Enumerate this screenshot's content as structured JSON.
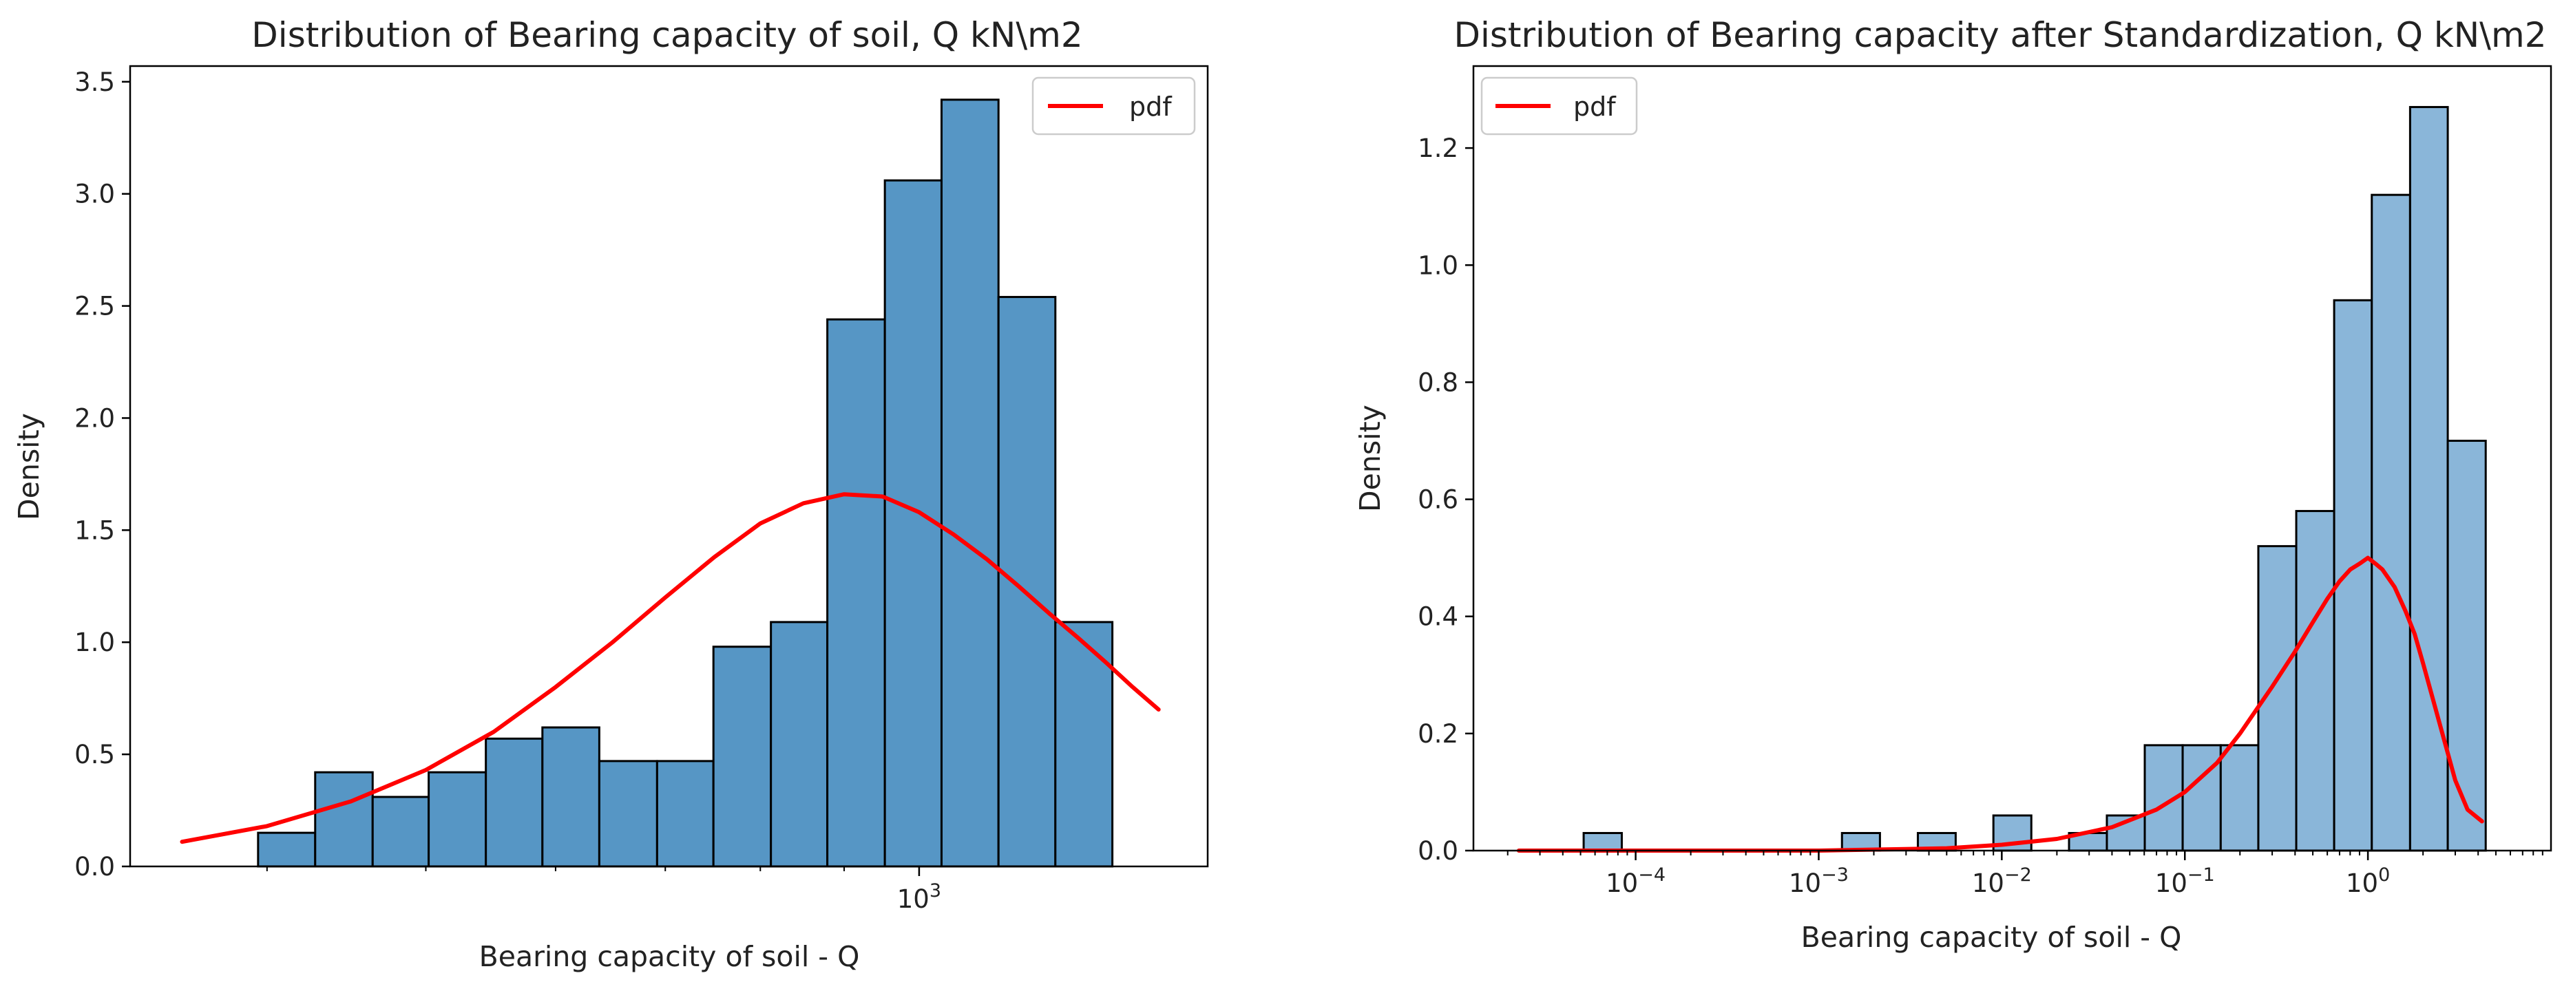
{
  "chart_data": [
    {
      "type": "bar",
      "title": "Distribution of Bearing capacity of soil, Q kN\\m2",
      "xlabel": "Bearing capacity of soil - Q",
      "ylabel": "Density",
      "xscale": "log",
      "xlim": [
        330,
        1500
      ],
      "ylim": [
        0,
        3.57
      ],
      "yticks": [
        0.0,
        0.5,
        1.0,
        1.5,
        2.0,
        2.5,
        3.0,
        3.5
      ],
      "ytick_labels": [
        "0.0",
        "0.5",
        "1.0",
        "1.5",
        "2.0",
        "2.5",
        "3.0",
        "3.5"
      ],
      "xticks": [
        1000
      ],
      "xtick_labels": [
        {
          "base": "10",
          "exp": "3"
        }
      ],
      "bar_color": "#5696c5",
      "bins": [
        {
          "x0": 395,
          "x1": 428,
          "density": 0.15
        },
        {
          "x0": 428,
          "x1": 464,
          "density": 0.42
        },
        {
          "x0": 464,
          "x1": 502,
          "density": 0.31
        },
        {
          "x0": 502,
          "x1": 544,
          "density": 0.42
        },
        {
          "x0": 544,
          "x1": 589,
          "density": 0.57
        },
        {
          "x0": 589,
          "x1": 638,
          "density": 0.62
        },
        {
          "x0": 638,
          "x1": 692,
          "density": 0.47
        },
        {
          "x0": 692,
          "x1": 749,
          "density": 0.47
        },
        {
          "x0": 749,
          "x1": 812,
          "density": 0.98
        },
        {
          "x0": 812,
          "x1": 879,
          "density": 1.09
        },
        {
          "x0": 879,
          "x1": 953,
          "density": 2.44
        },
        {
          "x0": 953,
          "x1": 1032,
          "density": 3.06
        },
        {
          "x0": 1032,
          "x1": 1118,
          "density": 3.42
        },
        {
          "x0": 1118,
          "x1": 1211,
          "density": 2.54
        },
        {
          "x0": 1211,
          "x1": 1312,
          "density": 1.09
        }
      ],
      "series": [
        {
          "name": "pdf",
          "color": "#ff0000",
          "x": [
            355,
            400,
            450,
            500,
            550,
            600,
            650,
            700,
            750,
            800,
            850,
            900,
            950,
            1000,
            1050,
            1100,
            1150,
            1200,
            1250,
            1300,
            1350,
            1400
          ],
          "y": [
            0.11,
            0.18,
            0.29,
            0.43,
            0.6,
            0.8,
            1.0,
            1.2,
            1.38,
            1.53,
            1.62,
            1.66,
            1.65,
            1.58,
            1.48,
            1.37,
            1.25,
            1.13,
            1.02,
            0.91,
            0.8,
            0.7
          ]
        }
      ],
      "legend": {
        "position": "top-right",
        "entries": [
          "pdf"
        ]
      }
    },
    {
      "type": "bar",
      "title": "Distribution of Bearing capacity after Standardization, Q kN\\m2",
      "xlabel": "Bearing capacity of soil - Q",
      "ylabel": "Density",
      "xscale": "log",
      "xlim": [
        1.3e-05,
        10
      ],
      "ylim": [
        0,
        1.34
      ],
      "yticks": [
        0.0,
        0.2,
        0.4,
        0.6,
        0.8,
        1.0,
        1.2
      ],
      "ytick_labels": [
        "0.0",
        "0.2",
        "0.4",
        "0.6",
        "0.8",
        "1.0",
        "1.2"
      ],
      "xticks": [
        0.0001,
        0.001,
        0.01,
        0.1,
        1
      ],
      "xtick_labels": [
        {
          "base": "10",
          "exp": "−4"
        },
        {
          "base": "10",
          "exp": "−3"
        },
        {
          "base": "10",
          "exp": "−2"
        },
        {
          "base": "10",
          "exp": "−1"
        },
        {
          "base": "10",
          "exp": "0"
        }
      ],
      "bar_color": "#8ab6d9",
      "bins": [
        {
          "x0": 5.2e-05,
          "x1": 8.4e-05,
          "density": 0.03
        },
        {
          "x0": 0.00134,
          "x1": 0.00216,
          "density": 0.03
        },
        {
          "x0": 0.00348,
          "x1": 0.0056,
          "density": 0.03
        },
        {
          "x0": 0.009,
          "x1": 0.0145,
          "density": 0.06
        },
        {
          "x0": 0.0233,
          "x1": 0.0375,
          "density": 0.03
        },
        {
          "x0": 0.0375,
          "x1": 0.0604,
          "density": 0.06
        },
        {
          "x0": 0.0604,
          "x1": 0.0973,
          "density": 0.18
        },
        {
          "x0": 0.0973,
          "x1": 0.157,
          "density": 0.18
        },
        {
          "x0": 0.157,
          "x1": 0.252,
          "density": 0.18
        },
        {
          "x0": 0.252,
          "x1": 0.406,
          "density": 0.52
        },
        {
          "x0": 0.406,
          "x1": 0.654,
          "density": 0.58
        },
        {
          "x0": 0.654,
          "x1": 1.05,
          "density": 0.94
        },
        {
          "x0": 1.05,
          "x1": 1.7,
          "density": 1.12
        },
        {
          "x0": 1.7,
          "x1": 2.73,
          "density": 1.27
        },
        {
          "x0": 2.73,
          "x1": 4.4,
          "density": 0.7
        }
      ],
      "series": [
        {
          "name": "pdf",
          "color": "#ff0000",
          "x": [
            2.3e-05,
            0.0001,
            0.001,
            0.005,
            0.01,
            0.02,
            0.04,
            0.07,
            0.1,
            0.15,
            0.2,
            0.3,
            0.4,
            0.5,
            0.6,
            0.7,
            0.8,
            0.9,
            1.0,
            1.1,
            1.2,
            1.4,
            1.6,
            1.8,
            2.0,
            2.5,
            3.0,
            3.5,
            4.2
          ],
          "y": [
            0.0,
            0.0,
            0.0,
            0.004,
            0.01,
            0.02,
            0.04,
            0.07,
            0.1,
            0.15,
            0.2,
            0.28,
            0.34,
            0.39,
            0.43,
            0.46,
            0.48,
            0.49,
            0.5,
            0.49,
            0.48,
            0.45,
            0.41,
            0.37,
            0.32,
            0.21,
            0.12,
            0.07,
            0.05
          ]
        }
      ],
      "legend": {
        "position": "top-left",
        "entries": [
          "pdf"
        ]
      }
    }
  ]
}
